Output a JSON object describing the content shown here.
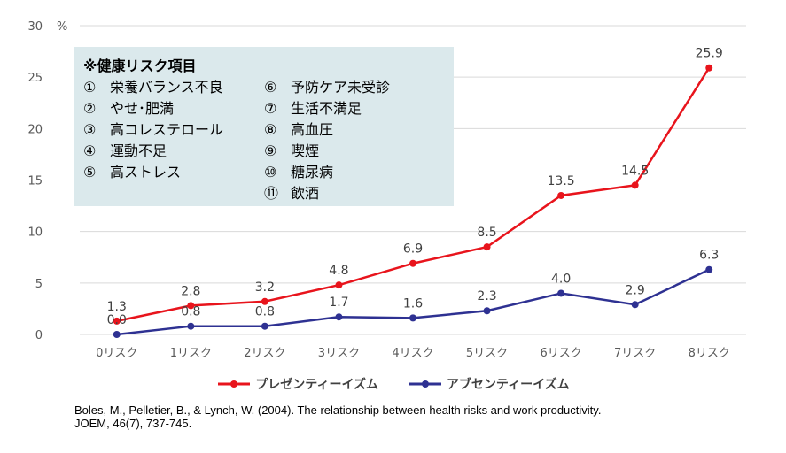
{
  "chart_data": {
    "type": "line",
    "unit_label": "%",
    "ylim": [
      0,
      30
    ],
    "yticks": [
      0,
      5,
      10,
      15,
      20,
      25,
      30
    ],
    "categories": [
      "0リスク",
      "1リスク",
      "2リスク",
      "3リスク",
      "4リスク",
      "5リスク",
      "6リスク",
      "7リスク",
      "8リスク"
    ],
    "series": [
      {
        "name": "プレゼンティーイズム",
        "color": "#e8141c",
        "values": [
          1.3,
          2.8,
          3.2,
          4.8,
          6.9,
          8.5,
          13.5,
          14.5,
          25.9
        ],
        "labels": [
          "1.3",
          "2.8",
          "3.2",
          "4.8",
          "6.9",
          "8.5",
          "13.5",
          "14.5",
          "25.9"
        ]
      },
      {
        "name": "アブセンティーイズム",
        "color": "#2e3192",
        "values": [
          0.0,
          0.8,
          0.8,
          1.7,
          1.6,
          2.3,
          4.0,
          2.9,
          6.3
        ],
        "labels": [
          "0.0",
          "0.8",
          "0.8",
          "1.7",
          "1.6",
          "2.3",
          "4.0",
          "2.9",
          "6.3"
        ]
      }
    ],
    "grid": true,
    "legend": "bottom"
  },
  "risk_box": {
    "title": "※健康リスク項目",
    "items": [
      {
        "num": "①",
        "label": "栄養バランス不良"
      },
      {
        "num": "②",
        "label": "やせ･肥満"
      },
      {
        "num": "③",
        "label": "高コレステロール"
      },
      {
        "num": "④",
        "label": "運動不足"
      },
      {
        "num": "⑤",
        "label": "高ストレス"
      },
      {
        "num": "⑥",
        "label": "予防ケア未受診"
      },
      {
        "num": "⑦",
        "label": "生活不満足"
      },
      {
        "num": "⑧",
        "label": "高血圧"
      },
      {
        "num": "⑨",
        "label": "喫煙"
      },
      {
        "num": "⑩",
        "label": "糖尿病"
      },
      {
        "num": "⑪",
        "label": "飲酒"
      }
    ]
  },
  "citation": {
    "line1": "Boles, M., Pelletier, B., & Lynch, W. (2004). The relationship between health risks and work productivity.",
    "line2": "JOEM, 46(7), 737-745."
  }
}
